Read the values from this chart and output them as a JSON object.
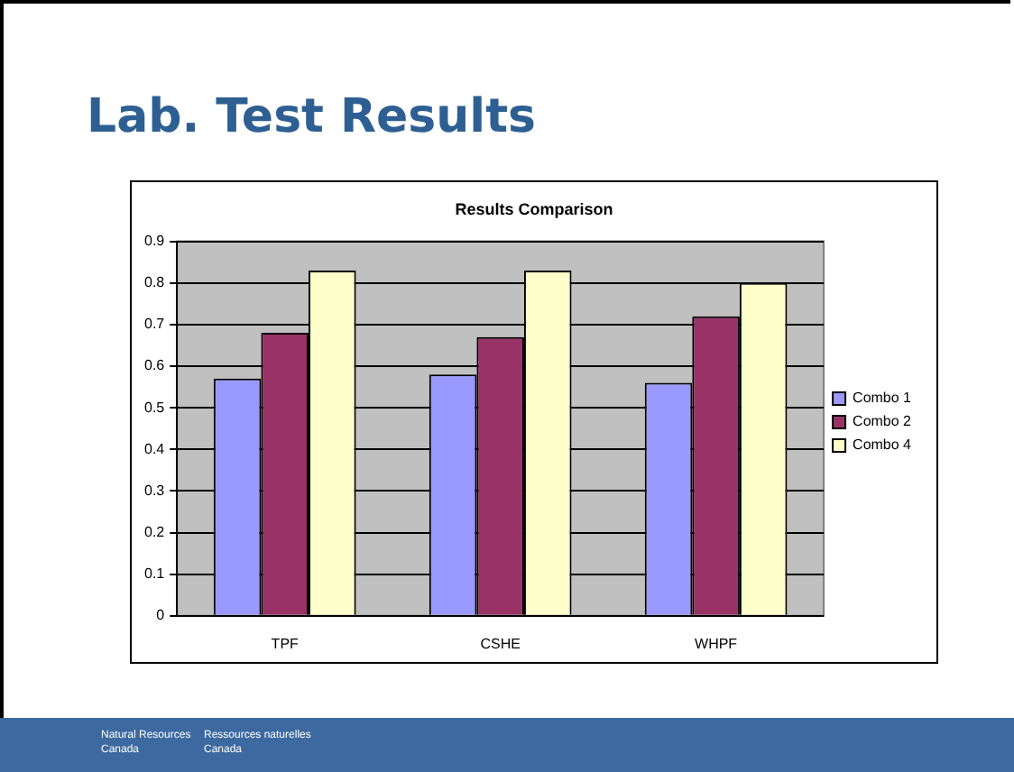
{
  "chart_data": {
    "type": "bar",
    "title": "Lab. Test Results",
    "subtitle": "Results Comparison",
    "categories": [
      "TPF",
      "CSHE",
      "WHPF"
    ],
    "series": [
      {
        "name": "Combo 1",
        "color": "#9999ff",
        "values": [
          0.57,
          0.58,
          0.56
        ]
      },
      {
        "name": "Combo 2",
        "color": "#993366",
        "values": [
          0.68,
          0.67,
          0.72
        ]
      },
      {
        "name": "Combo 4",
        "color": "#ffffcc",
        "values": [
          0.83,
          0.83,
          0.8
        ]
      }
    ],
    "ylim": [
      0,
      0.9
    ],
    "yticks": [
      0,
      0.1,
      0.2,
      0.3,
      0.4,
      0.5,
      0.6,
      0.7,
      0.8,
      0.9
    ],
    "grid": "y",
    "legend": "right",
    "annotations": [
      "Natural Resources Canada",
      "Ressources naturelles Canada"
    ]
  }
}
